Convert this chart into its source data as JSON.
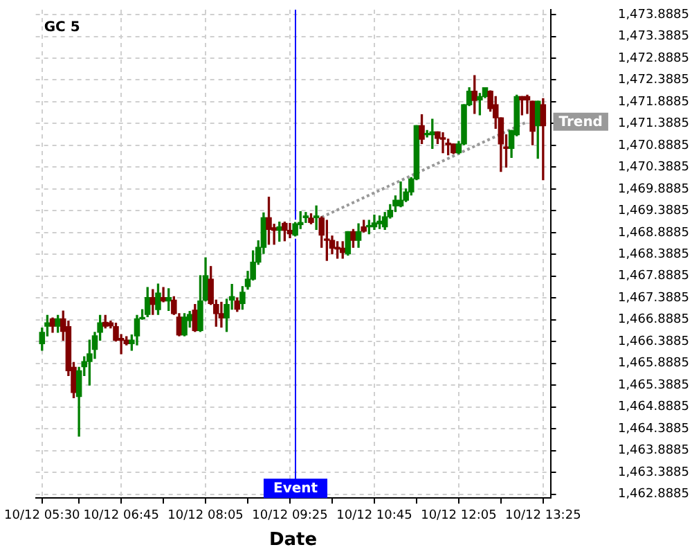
{
  "chart_data": {
    "type": "candlestick",
    "title": "GC 5",
    "xlabel": "Date",
    "x": [
      "--10-12T05:30",
      "--10-12T05:35",
      "--10-12T05:40",
      "--10-12T05:45",
      "--10-12T05:50",
      "--10-12T05:55",
      "--10-12T06:00",
      "--10-12T06:05",
      "--10-12T06:10",
      "--10-12T06:15",
      "--10-12T06:20",
      "--10-12T06:25",
      "--10-12T06:30",
      "--10-12T06:35",
      "--10-12T06:40",
      "--10-12T06:45",
      "--10-12T06:50",
      "--10-12T06:55",
      "--10-12T07:00",
      "--10-12T07:05",
      "--10-12T07:10",
      "--10-12T07:15",
      "--10-12T07:20",
      "--10-12T07:25",
      "--10-12T07:30",
      "--10-12T07:35",
      "--10-12T07:40",
      "--10-12T07:45",
      "--10-12T07:50",
      "--10-12T07:55",
      "--10-12T08:00",
      "--10-12T08:05",
      "--10-12T08:10",
      "--10-12T08:15",
      "--10-12T08:20",
      "--10-12T08:25",
      "--10-12T08:30",
      "--10-12T08:35",
      "--10-12T08:40",
      "--10-12T08:45",
      "--10-12T08:50",
      "--10-12T08:55",
      "--10-12T09:00",
      "--10-12T09:05",
      "--10-12T09:10",
      "--10-12T09:15",
      "--10-12T09:20",
      "--10-12T09:25",
      "--10-12T09:30",
      "--10-12T09:35",
      "--10-12T09:40",
      "--10-12T09:45",
      "--10-12T09:50",
      "--10-12T09:55",
      "--10-12T10:00",
      "--10-12T10:05",
      "--10-12T10:10",
      "--10-12T10:15",
      "--10-12T10:20",
      "--10-12T10:25",
      "--10-12T10:30",
      "--10-12T10:35",
      "--10-12T10:40",
      "--10-12T10:45",
      "--10-12T10:50",
      "--10-12T10:55",
      "--10-12T11:00",
      "--10-12T11:05",
      "--10-12T11:10",
      "--10-12T11:15",
      "--10-12T11:20",
      "--10-12T11:25",
      "--10-12T11:30",
      "--10-12T11:35",
      "--10-12T11:40",
      "--10-12T11:45",
      "--10-12T11:50",
      "--10-12T11:55",
      "--10-12T12:00",
      "--10-12T12:05",
      "--10-12T12:10",
      "--10-12T12:15",
      "--10-12T12:20",
      "--10-12T12:25",
      "--10-12T12:30",
      "--10-12T12:35",
      "--10-12T12:40",
      "--10-12T12:45",
      "--10-12T12:50",
      "--10-12T12:55",
      "--10-12T13:00",
      "--10-12T13:05",
      "--10-12T13:10",
      "--10-12T13:15",
      "--10-12T13:20",
      "--10-12T13:25"
    ],
    "ohlc": [
      [
        1466.34,
        1466.7,
        1466.19,
        1466.6
      ],
      [
        1466.74,
        1466.99,
        1466.52,
        1466.82
      ],
      [
        1466.91,
        1466.93,
        1466.6,
        1466.74
      ],
      [
        1466.74,
        1466.99,
        1466.6,
        1466.91
      ],
      [
        1466.91,
        1467.09,
        1466.42,
        1466.62
      ],
      [
        1466.73,
        1466.86,
        1465.61,
        1465.72
      ],
      [
        1465.8,
        1465.91,
        1465.1,
        1465.22
      ],
      [
        1465.13,
        1465.8,
        1464.22,
        1465.72
      ],
      [
        1465.81,
        1466.04,
        1465.61,
        1465.93
      ],
      [
        1465.93,
        1466.42,
        1465.39,
        1466.11
      ],
      [
        1466.21,
        1466.6,
        1466.0,
        1466.52
      ],
      [
        1466.6,
        1466.99,
        1466.42,
        1466.82
      ],
      [
        1466.83,
        1466.99,
        1466.7,
        1466.74
      ],
      [
        1466.82,
        1466.86,
        1466.7,
        1466.75
      ],
      [
        1466.73,
        1466.81,
        1466.4,
        1466.42
      ],
      [
        1466.46,
        1466.55,
        1466.11,
        1466.42
      ],
      [
        1466.42,
        1466.5,
        1466.31,
        1466.34
      ],
      [
        1466.34,
        1466.54,
        1466.19,
        1466.42
      ],
      [
        1466.52,
        1466.99,
        1466.31,
        1466.91
      ],
      [
        1466.91,
        1467.12,
        1466.9,
        1466.94
      ],
      [
        1467.01,
        1467.63,
        1466.96,
        1467.4
      ],
      [
        1467.4,
        1467.58,
        1467.01,
        1467.24
      ],
      [
        1467.12,
        1467.71,
        1467.01,
        1467.5
      ],
      [
        1467.4,
        1467.63,
        1467.3,
        1467.32
      ],
      [
        1467.32,
        1467.6,
        1467.1,
        1467.4
      ],
      [
        1467.34,
        1467.42,
        1467.01,
        1467.03
      ],
      [
        1466.95,
        1467.03,
        1466.52,
        1466.54
      ],
      [
        1466.54,
        1467.03,
        1466.52,
        1466.95
      ],
      [
        1466.87,
        1467.08,
        1466.72,
        1467.01
      ],
      [
        1467.11,
        1467.24,
        1466.62,
        1466.64
      ],
      [
        1466.64,
        1467.9,
        1466.62,
        1467.32
      ],
      [
        1467.34,
        1468.31,
        1467.32,
        1467.9
      ],
      [
        1467.82,
        1468.11,
        1467.24,
        1467.26
      ],
      [
        1467.24,
        1467.34,
        1466.74,
        1467.03
      ],
      [
        1467.03,
        1467.29,
        1466.72,
        1466.93
      ],
      [
        1466.93,
        1467.36,
        1466.62,
        1467.24
      ],
      [
        1467.34,
        1467.7,
        1467.13,
        1467.42
      ],
      [
        1467.32,
        1467.39,
        1467.08,
        1467.13
      ],
      [
        1467.26,
        1467.65,
        1467.13,
        1467.52
      ],
      [
        1467.65,
        1468.0,
        1467.59,
        1467.82
      ],
      [
        1467.82,
        1468.47,
        1467.8,
        1468.21
      ],
      [
        1468.21,
        1468.7,
        1468.16,
        1468.55
      ],
      [
        1468.55,
        1469.34,
        1468.41,
        1469.23
      ],
      [
        1469.23,
        1469.7,
        1468.62,
        1468.96
      ],
      [
        1469.0,
        1469.08,
        1468.62,
        1468.94
      ],
      [
        1468.94,
        1469.13,
        1468.69,
        1469.02
      ],
      [
        1469.1,
        1469.13,
        1468.7,
        1468.94
      ],
      [
        1468.94,
        1469.1,
        1468.77,
        1468.86
      ],
      [
        1468.83,
        1469.12,
        1468.81,
        1469.09
      ],
      [
        1469.07,
        1469.37,
        1468.98,
        1469.12
      ],
      [
        1469.23,
        1469.35,
        1469.12,
        1469.27
      ],
      [
        1469.22,
        1469.32,
        1469.09,
        1469.12
      ],
      [
        1469.23,
        1469.5,
        1468.96,
        1469.27
      ],
      [
        1469.22,
        1469.25,
        1468.55,
        1468.83
      ],
      [
        1468.74,
        1469.17,
        1468.25,
        1468.71
      ],
      [
        1468.71,
        1468.81,
        1468.4,
        1468.53
      ],
      [
        1468.55,
        1468.68,
        1468.3,
        1468.51
      ],
      [
        1468.53,
        1468.68,
        1468.3,
        1468.43
      ],
      [
        1468.4,
        1468.91,
        1468.37,
        1468.91
      ],
      [
        1468.91,
        1468.96,
        1468.55,
        1468.71
      ],
      [
        1468.71,
        1469.09,
        1468.55,
        1468.91
      ],
      [
        1469.02,
        1469.17,
        1468.9,
        1468.92
      ],
      [
        1469.02,
        1469.17,
        1468.86,
        1469.05
      ],
      [
        1469.02,
        1469.29,
        1468.96,
        1469.11
      ],
      [
        1469.09,
        1469.27,
        1468.98,
        1469.15
      ],
      [
        1469.02,
        1469.35,
        1468.96,
        1469.25
      ],
      [
        1469.25,
        1469.53,
        1469.22,
        1469.4
      ],
      [
        1469.5,
        1469.73,
        1469.37,
        1469.63
      ],
      [
        1469.5,
        1470.05,
        1469.48,
        1469.63
      ],
      [
        1469.63,
        1469.89,
        1469.6,
        1469.82
      ],
      [
        1469.82,
        1470.15,
        1469.75,
        1470.12
      ],
      [
        1470.12,
        1471.34,
        1470.1,
        1471.34
      ],
      [
        1471.34,
        1471.59,
        1470.93,
        1471.03
      ],
      [
        1471.13,
        1471.23,
        1471.08,
        1471.16
      ],
      [
        1471.13,
        1471.49,
        1470.82,
        1471.2
      ],
      [
        1471.2,
        1471.2,
        1470.93,
        1471.05
      ],
      [
        1471.05,
        1471.18,
        1470.72,
        1471.03
      ],
      [
        1470.94,
        1471.03,
        1470.67,
        1470.9
      ],
      [
        1470.92,
        1470.92,
        1470.7,
        1470.72
      ],
      [
        1470.72,
        1470.98,
        1470.7,
        1470.92
      ],
      [
        1470.92,
        1471.82,
        1470.9,
        1471.82
      ],
      [
        1471.82,
        1472.21,
        1471.8,
        1472.13
      ],
      [
        1472.13,
        1472.49,
        1471.62,
        1471.92
      ],
      [
        1471.93,
        1472.08,
        1471.59,
        1472.01
      ],
      [
        1472.01,
        1472.21,
        1471.98,
        1472.21
      ],
      [
        1472.13,
        1472.14,
        1471.67,
        1471.73
      ],
      [
        1471.82,
        1472.01,
        1471.28,
        1471.52
      ],
      [
        1471.52,
        1471.52,
        1470.29,
        1470.92
      ],
      [
        1470.84,
        1471.13,
        1470.39,
        1470.82
      ],
      [
        1470.82,
        1471.23,
        1470.61,
        1471.23
      ],
      [
        1471.13,
        1472.04,
        1471.11,
        1472.01
      ],
      [
        1472.01,
        1472.01,
        1471.59,
        1471.93
      ],
      [
        1472.01,
        1472.04,
        1471.62,
        1471.93
      ],
      [
        1471.9,
        1471.9,
        1470.9,
        1471.21
      ],
      [
        1471.34,
        1471.9,
        1470.59,
        1471.9
      ],
      [
        1471.82,
        1471.96,
        1470.1,
        1471.34
      ]
    ],
    "colors": [
      "#008000",
      "#008000",
      "#800000",
      "#008000",
      "#800000",
      "#800000",
      "#800000",
      "#008000",
      "#008000",
      "#008000",
      "#008000",
      "#008000",
      "#800000",
      "#800000",
      "#800000",
      "#800000",
      "#800000",
      "#008000",
      "#008000",
      "#008000",
      "#008000",
      "#800000",
      "#008000",
      "#800000",
      "#008000",
      "#800000",
      "#800000",
      "#008000",
      "#008000",
      "#800000",
      "#008000",
      "#008000",
      "#800000",
      "#800000",
      "#800000",
      "#008000",
      "#008000",
      "#800000",
      "#008000",
      "#008000",
      "#008000",
      "#008000",
      "#008000",
      "#800000",
      "#800000",
      "#008000",
      "#800000",
      "#800000",
      "#008000",
      "#008000",
      "#008000",
      "#800000",
      "#008000",
      "#800000",
      "#800000",
      "#800000",
      "#800000",
      "#800000",
      "#008000",
      "#800000",
      "#008000",
      "#800000",
      "#008000",
      "#008000",
      "#008000",
      "#008000",
      "#008000",
      "#008000",
      "#008000",
      "#008000",
      "#008000",
      "#008000",
      "#800000",
      "#008000",
      "#008000",
      "#800000",
      "#800000",
      "#800000",
      "#800000",
      "#008000",
      "#008000",
      "#008000",
      "#800000",
      "#008000",
      "#008000",
      "#800000",
      "#800000",
      "#800000",
      "#800000",
      "#008000",
      "#008000",
      "#800000",
      "#800000",
      "#800000",
      "#008000",
      "#800000"
    ],
    "series": [
      {
        "type": "line",
        "name": "Trend",
        "color": "#999999",
        "line_style": "dotted",
        "x": [
          "--10-12T09:55",
          "--10-12T13:10"
        ],
        "values": [
          1469.24,
          1471.43
        ]
      }
    ],
    "ref_lines": [
      {
        "axis": "x",
        "value": "--10-12T09:30",
        "label": "Event",
        "color": "#0000ff"
      }
    ],
    "xlim": [
      "--10-12T05:24",
      "--10-12T13:32"
    ],
    "xticks": [
      {
        "value": "--10-12T05:30",
        "label": "10/12 05:30"
      },
      {
        "value": "--10-12T06:05",
        "label": null
      },
      {
        "value": "--10-12T06:45",
        "label": "10/12 06:45"
      },
      {
        "value": "--10-12T07:25",
        "label": null
      },
      {
        "value": "--10-12T08:05",
        "label": "10/12 08:05"
      },
      {
        "value": "--10-12T08:45",
        "label": null
      },
      {
        "value": "--10-12T09:25",
        "label": "10/12 09:25"
      },
      {
        "value": "--10-12T10:05",
        "label": null
      },
      {
        "value": "--10-12T10:45",
        "label": "10/12 10:45"
      },
      {
        "value": "--10-12T11:25",
        "label": null
      },
      {
        "value": "--10-12T12:05",
        "label": "10/12 12:05"
      },
      {
        "value": "--10-12T12:45",
        "label": null
      },
      {
        "value": "--10-12T13:25",
        "label": "10/12 13:25"
      }
    ],
    "ylim": [
      1462.8,
      1474.0
    ],
    "yticks": [
      {
        "value": 1462.8885,
        "label": "1,462.8885"
      },
      {
        "value": 1463.3885,
        "label": "1,463.3885"
      },
      {
        "value": 1463.8885,
        "label": "1,463.8885"
      },
      {
        "value": 1464.3885,
        "label": "1,464.3885"
      },
      {
        "value": 1464.8885,
        "label": "1,464.8885"
      },
      {
        "value": 1465.3885,
        "label": "1,465.3885"
      },
      {
        "value": 1465.8885,
        "label": "1,465.8885"
      },
      {
        "value": 1466.3885,
        "label": "1,466.3885"
      },
      {
        "value": 1466.8885,
        "label": "1,466.8885"
      },
      {
        "value": 1467.3885,
        "label": "1,467.3885"
      },
      {
        "value": 1467.8885,
        "label": "1,467.8885"
      },
      {
        "value": 1468.3885,
        "label": "1,468.3885"
      },
      {
        "value": 1468.8885,
        "label": "1,468.8885"
      },
      {
        "value": 1469.3885,
        "label": "1,469.3885"
      },
      {
        "value": 1469.8885,
        "label": "1,469.8885"
      },
      {
        "value": 1470.3885,
        "label": "1,470.3885"
      },
      {
        "value": 1470.8885,
        "label": "1,470.8885"
      },
      {
        "value": 1471.3885,
        "label": "1,471.3885"
      },
      {
        "value": 1471.8885,
        "label": "1,471.8885"
      },
      {
        "value": 1472.3885,
        "label": "1,472.3885"
      },
      {
        "value": 1472.8885,
        "label": "1,472.8885"
      },
      {
        "value": 1473.3885,
        "label": "1,473.3885"
      },
      {
        "value": 1473.8885,
        "label": "1,473.8885"
      }
    ],
    "grid": true
  }
}
